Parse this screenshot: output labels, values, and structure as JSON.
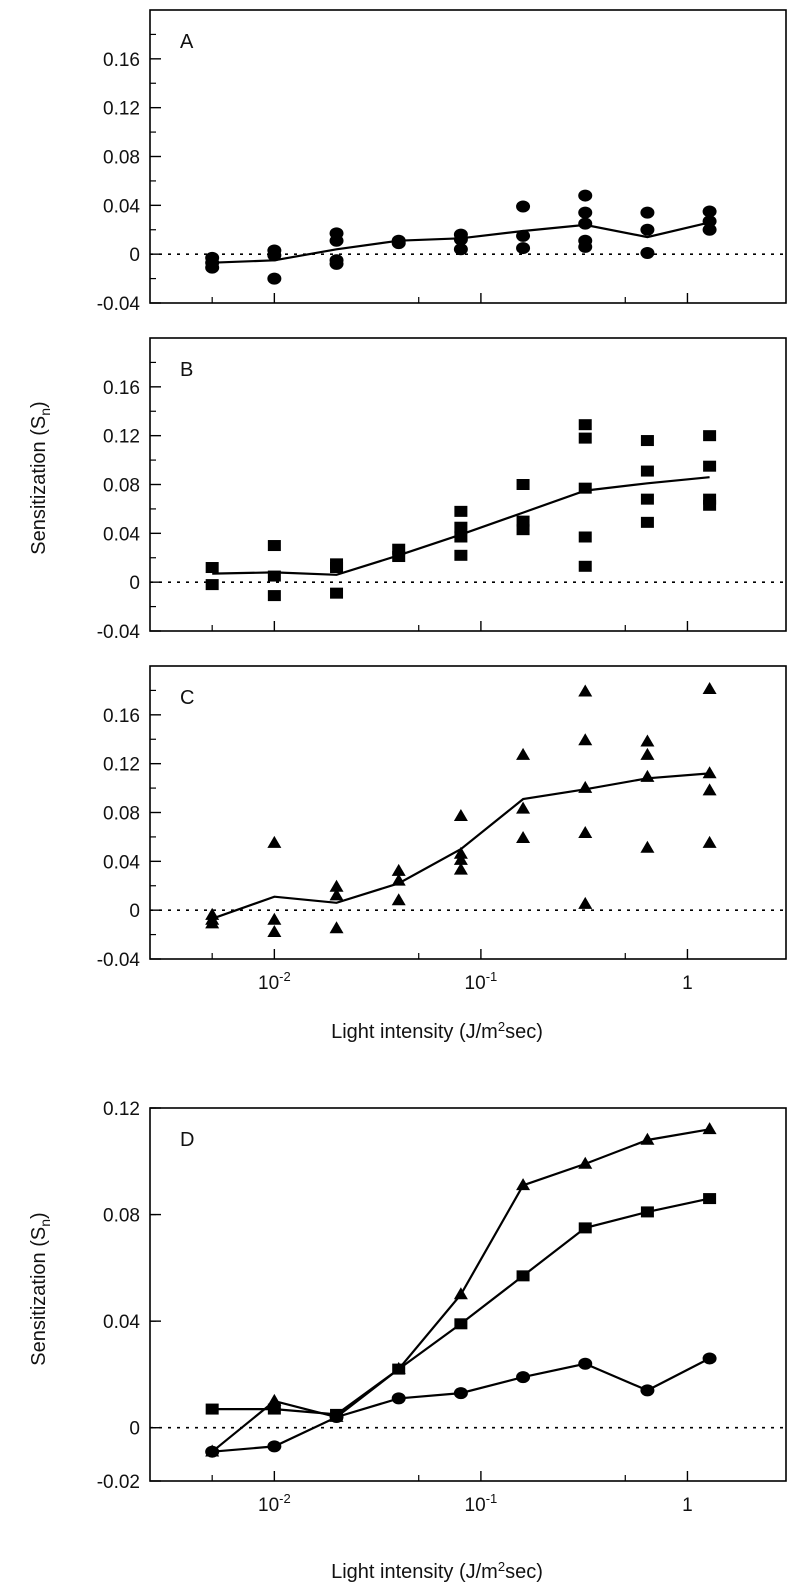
{
  "figure": {
    "ylabel_main": "Sensitization (S",
    "ylabel_sub": "n",
    "ylabel_close": ")",
    "xlabel_main": "Light intensity (J/m",
    "xlabel_sup": "2",
    "xlabel_close": "sec)",
    "x_tick_labels": [
      {
        "base": "10",
        "exp": "-2"
      },
      {
        "base": "10",
        "exp": "-1"
      },
      {
        "base": "1",
        "exp": ""
      }
    ]
  },
  "chart_data": [
    {
      "type": "scatter",
      "panel": "A",
      "marker": "circle",
      "x_scale": "log",
      "xlim": [
        0.0025,
        3.0
      ],
      "ylim": [
        -0.04,
        0.2
      ],
      "yticks": [
        -0.04,
        0,
        0.04,
        0.08,
        0.12,
        0.16
      ],
      "ytick_labels": [
        "-0.04",
        "0",
        "0.04",
        "0.08",
        "0.12",
        "0.16"
      ],
      "zero_line": "dotted",
      "points": {
        "x": [
          0.005,
          0.005,
          0.005,
          0.01,
          0.01,
          0.01,
          0.02,
          0.02,
          0.02,
          0.02,
          0.04,
          0.04,
          0.08,
          0.08,
          0.08,
          0.16,
          0.16,
          0.16,
          0.32,
          0.32,
          0.32,
          0.32,
          0.32,
          0.64,
          0.64,
          0.64,
          1.28,
          1.28,
          1.28
        ],
        "y": [
          -0.003,
          -0.007,
          -0.011,
          0.003,
          -0.001,
          -0.02,
          0.017,
          0.011,
          -0.005,
          -0.008,
          0.011,
          0.009,
          0.016,
          0.012,
          0.004,
          0.039,
          0.015,
          0.005,
          0.048,
          0.034,
          0.025,
          0.011,
          0.006,
          0.034,
          0.02,
          0.001,
          0.035,
          0.027,
          0.02
        ]
      },
      "mean_line": {
        "x": [
          0.005,
          0.01,
          0.02,
          0.04,
          0.08,
          0.16,
          0.32,
          0.64,
          1.28
        ],
        "y": [
          -0.007,
          -0.005,
          0.004,
          0.011,
          0.013,
          0.019,
          0.024,
          0.014,
          0.026
        ]
      }
    },
    {
      "type": "scatter",
      "panel": "B",
      "marker": "square",
      "x_scale": "log",
      "xlim": [
        0.0025,
        3.0
      ],
      "ylim": [
        -0.04,
        0.2
      ],
      "yticks": [
        -0.04,
        0,
        0.04,
        0.08,
        0.12,
        0.16
      ],
      "ytick_labels": [
        "-0.04",
        "0",
        "0.04",
        "0.08",
        "0.12",
        "0.16"
      ],
      "zero_line": "dotted",
      "points": {
        "x": [
          0.005,
          0.005,
          0.01,
          0.01,
          0.01,
          0.02,
          0.02,
          0.02,
          0.04,
          0.04,
          0.08,
          0.08,
          0.08,
          0.08,
          0.16,
          0.16,
          0.16,
          0.32,
          0.32,
          0.32,
          0.32,
          0.32,
          0.64,
          0.64,
          0.64,
          0.64,
          1.28,
          1.28,
          1.28,
          1.28
        ],
        "y": [
          0.012,
          -0.002,
          0.03,
          0.005,
          -0.011,
          0.015,
          0.012,
          -0.009,
          0.027,
          0.021,
          0.058,
          0.045,
          0.037,
          0.022,
          0.08,
          0.05,
          0.043,
          0.129,
          0.118,
          0.077,
          0.037,
          0.013,
          0.116,
          0.091,
          0.068,
          0.049,
          0.12,
          0.095,
          0.068,
          0.063
        ]
      },
      "mean_line": {
        "x": [
          0.005,
          0.01,
          0.02,
          0.04,
          0.08,
          0.16,
          0.32,
          0.64,
          1.28
        ],
        "y": [
          0.007,
          0.008,
          0.006,
          0.022,
          0.039,
          0.057,
          0.075,
          0.081,
          0.086
        ]
      }
    },
    {
      "type": "scatter",
      "panel": "C",
      "marker": "triangle",
      "x_scale": "log",
      "xlim": [
        0.0025,
        3.0
      ],
      "ylim": [
        -0.04,
        0.2
      ],
      "yticks": [
        -0.04,
        0,
        0.04,
        0.08,
        0.12,
        0.16
      ],
      "ytick_labels": [
        "-0.04",
        "0",
        "0.04",
        "0.08",
        "0.12",
        "0.16"
      ],
      "zero_line": "dotted",
      "points": {
        "x": [
          0.005,
          0.005,
          0.005,
          0.01,
          0.01,
          0.01,
          0.02,
          0.02,
          0.02,
          0.04,
          0.04,
          0.04,
          0.08,
          0.08,
          0.08,
          0.08,
          0.16,
          0.16,
          0.16,
          0.32,
          0.32,
          0.32,
          0.32,
          0.32,
          0.64,
          0.64,
          0.64,
          0.64,
          1.28,
          1.28,
          1.28,
          1.28
        ],
        "y": [
          -0.004,
          -0.008,
          -0.011,
          0.055,
          -0.008,
          -0.018,
          0.019,
          0.012,
          -0.015,
          0.032,
          0.024,
          0.008,
          0.077,
          0.046,
          0.041,
          0.033,
          0.127,
          0.083,
          0.059,
          0.179,
          0.139,
          0.1,
          0.063,
          0.005,
          0.138,
          0.127,
          0.109,
          0.051,
          0.181,
          0.112,
          0.098,
          0.055
        ]
      },
      "mean_line": {
        "x": [
          0.005,
          0.01,
          0.02,
          0.04,
          0.08,
          0.16,
          0.32,
          0.64,
          1.28
        ],
        "y": [
          -0.007,
          0.011,
          0.006,
          0.022,
          0.05,
          0.091,
          0.099,
          0.108,
          0.112
        ]
      }
    },
    {
      "type": "line",
      "panel": "D",
      "x_scale": "log",
      "xlim": [
        0.0025,
        3.0
      ],
      "ylim": [
        -0.02,
        0.12
      ],
      "yticks": [
        -0.02,
        0,
        0.04,
        0.08,
        0.12
      ],
      "ytick_labels": [
        "-0.02",
        "0",
        "0.04",
        "0.08",
        "0.12"
      ],
      "zero_line": "dotted",
      "x": [
        0.005,
        0.01,
        0.02,
        0.04,
        0.08,
        0.16,
        0.32,
        0.64,
        1.28
      ],
      "series": [
        {
          "marker": "triangle",
          "values": [
            -0.009,
            0.01,
            0.004,
            0.022,
            0.05,
            0.091,
            0.099,
            0.108,
            0.112
          ]
        },
        {
          "marker": "square",
          "values": [
            0.007,
            0.007,
            0.005,
            0.022,
            0.039,
            0.057,
            0.075,
            0.081,
            0.086
          ]
        },
        {
          "marker": "circle",
          "values": [
            -0.009,
            -0.007,
            0.004,
            0.011,
            0.013,
            0.019,
            0.024,
            0.014,
            0.026
          ]
        }
      ]
    }
  ]
}
